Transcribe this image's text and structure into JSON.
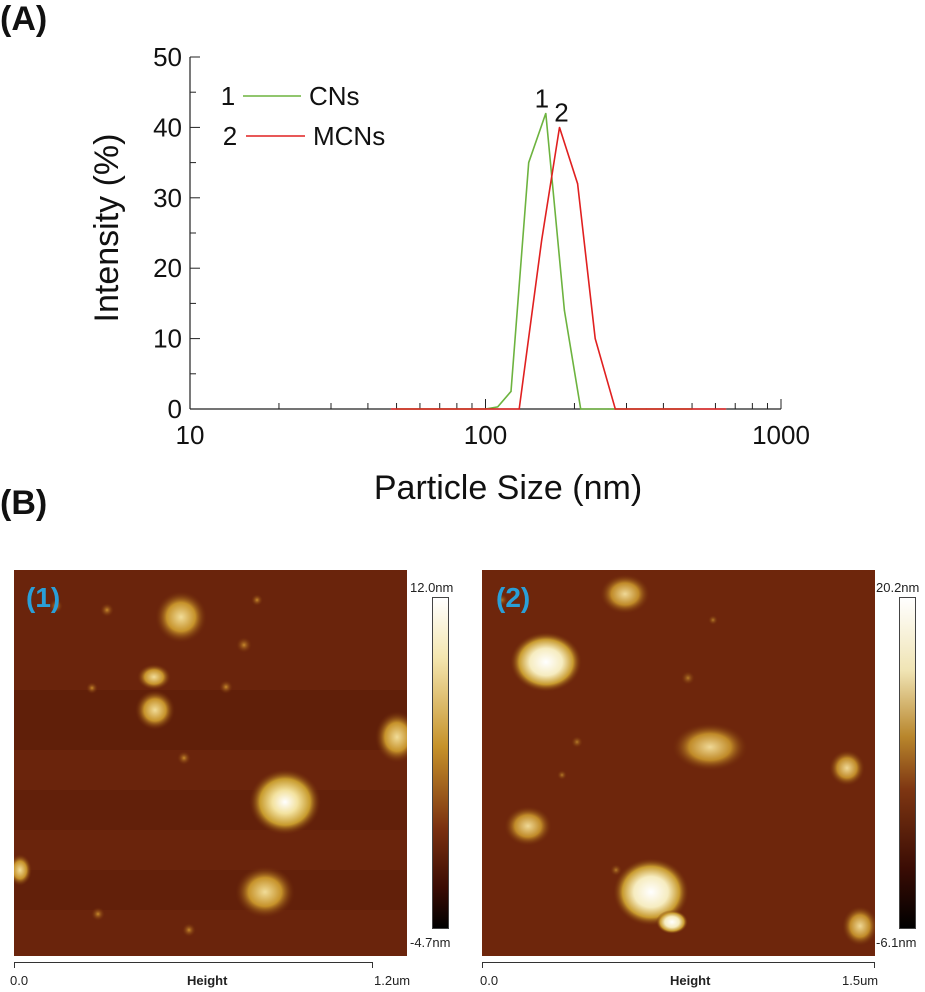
{
  "panel_a_label": "(A)",
  "panel_b_label": "(B)",
  "chart_data": {
    "type": "line",
    "xscale": "log",
    "xlim": [
      10,
      1000
    ],
    "ylim": [
      0,
      50
    ],
    "xticks": [
      "10",
      "100",
      "1000"
    ],
    "yticks": [
      "0",
      "10",
      "20",
      "30",
      "40",
      "50"
    ],
    "xlabel": "Particle Size (nm)",
    "ylabel": "Intensity (%)",
    "legend": "top-left",
    "grid": false,
    "series": [
      {
        "name": "CNs",
        "number": "1",
        "color": "#6db33f",
        "points": [
          [
            50,
            0
          ],
          [
            100,
            0
          ],
          [
            110,
            0.3
          ],
          [
            122,
            2.5
          ],
          [
            140,
            35
          ],
          [
            160,
            42
          ],
          [
            185,
            14
          ],
          [
            210,
            0
          ],
          [
            260,
            0
          ],
          [
            500,
            0
          ]
        ]
      },
      {
        "name": "MCNs",
        "number": "2",
        "color": "#e02020",
        "points": [
          [
            48,
            0
          ],
          [
            100,
            0
          ],
          [
            130,
            0
          ],
          [
            155,
            24
          ],
          [
            178,
            40
          ],
          [
            205,
            32
          ],
          [
            235,
            10
          ],
          [
            275,
            0
          ],
          [
            350,
            0
          ],
          [
            650,
            0
          ]
        ]
      }
    ],
    "peak_labels": [
      {
        "text": "1",
        "x": 160,
        "y": 42
      },
      {
        "text": "2",
        "x": 178,
        "y": 40
      }
    ]
  },
  "afm_images": [
    {
      "label": "(1)",
      "scale_max": "12.0nm",
      "scale_min": "-4.7nm",
      "x_start": "0.0",
      "x_mid": "Height",
      "x_end": "1.2um"
    },
    {
      "label": "(2)",
      "scale_max": "20.2nm",
      "scale_min": "-6.1nm",
      "x_start": "0.0",
      "x_mid": "Height",
      "x_end": "1.5um"
    }
  ]
}
